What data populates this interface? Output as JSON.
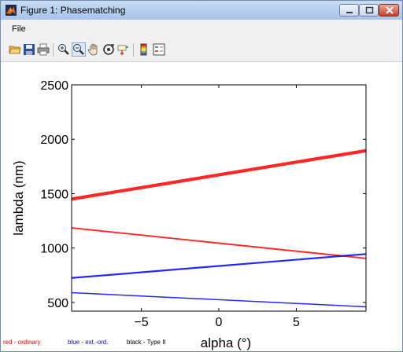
{
  "window": {
    "title": "Figure 1: Phasematching"
  },
  "menu": {
    "items": [
      "File"
    ]
  },
  "toolbar": {
    "buttons": [
      "open-icon",
      "save-icon",
      "print-icon",
      "zoom-in-icon",
      "zoom-out-icon",
      "pan-icon",
      "rotate-icon",
      "data-cursor-icon",
      "colorbar-icon",
      "legend-icon"
    ]
  },
  "legend": {
    "red": "red - ordinary",
    "blue": "blue - ext.-ord.",
    "black": "black - Type II"
  },
  "colors": {
    "red": "#ff0000",
    "blue": "#0000ff",
    "black": "#000000"
  },
  "chart_data": {
    "type": "line",
    "xlabel": "alpha (°)",
    "ylabel": "lambda (nm)",
    "xlim": [
      -9.5,
      9.5
    ],
    "ylim": [
      420,
      2500
    ],
    "xticks": [
      -5,
      0,
      5
    ],
    "yticks": [
      500,
      1000,
      1500,
      2000,
      2500
    ],
    "grid": false,
    "series": [
      {
        "color": "red",
        "x": [
          -9.5,
          9.5
        ],
        "y": [
          1450,
          1895
        ],
        "band": 30
      },
      {
        "color": "red",
        "x": [
          -9.5,
          9.5
        ],
        "y": [
          1185,
          905
        ],
        "band": 14
      },
      {
        "color": "blue",
        "x": [
          -9.5,
          9.5
        ],
        "y": [
          725,
          945
        ],
        "band": 16
      },
      {
        "color": "blue",
        "x": [
          -9.5,
          9.5
        ],
        "y": [
          590,
          460
        ],
        "band": 6
      }
    ]
  }
}
